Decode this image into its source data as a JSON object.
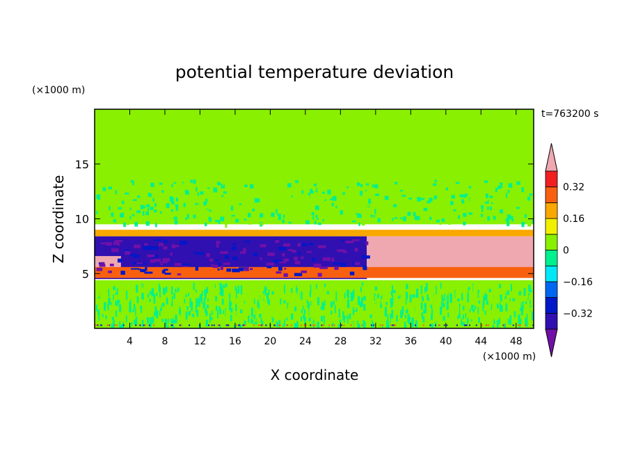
{
  "chart_data": {
    "type": "heatmap",
    "title": "potential temperature deviation",
    "xlabel": "X coordinate",
    "ylabel": "Z coordinate",
    "x_unit": "(×1000 m)",
    "y_unit": "(×1000 m)",
    "time_label": "t=763200 s",
    "xlim": [
      0,
      50
    ],
    "ylim": [
      0,
      20
    ],
    "x_ticks": [
      4,
      8,
      12,
      16,
      20,
      24,
      28,
      32,
      36,
      40,
      44,
      48
    ],
    "y_ticks": [
      5,
      10,
      15
    ],
    "x_tick_labels": [
      "4",
      "8",
      "12",
      "16",
      "20",
      "24",
      "28",
      "32",
      "36",
      "40",
      "44",
      "48"
    ],
    "y_tick_labels": [
      "5",
      "10",
      "15"
    ],
    "colorbar": {
      "levels": [
        -0.48,
        -0.4,
        -0.32,
        -0.24,
        -0.16,
        -0.08,
        0,
        0.08,
        0.16,
        0.24,
        0.32,
        0.4
      ],
      "labels": [
        "0.32",
        "0.16",
        "0",
        "−0.16",
        "−0.32"
      ],
      "label_values": [
        0.32,
        0.16,
        0,
        -0.16,
        -0.32
      ],
      "colors": [
        "#7010a8",
        "#3010b0",
        "#0018c8",
        "#0068f0",
        "#00e8f8",
        "#00f090",
        "#88f000",
        "#f0f000",
        "#f8a800",
        "#f86010",
        "#f02020",
        "#f0a8b0"
      ]
    },
    "regions": [
      {
        "name": "upper-layer",
        "x": [
          0,
          50
        ],
        "z": [
          9.5,
          20
        ],
        "value": 0.04
      },
      {
        "name": "inversion-cap",
        "x": [
          0,
          50
        ],
        "z": [
          8.4,
          9.0
        ],
        "value": 0.2
      },
      {
        "name": "cold-anomaly",
        "x": [
          0,
          31
        ],
        "z": [
          4.5,
          8.4
        ],
        "value": -0.36
      },
      {
        "name": "warm-anomaly",
        "x": [
          31,
          50
        ],
        "z": [
          5.5,
          8.4
        ],
        "value": 0.42
      },
      {
        "name": "warm-pocket-left",
        "x": [
          0,
          3
        ],
        "z": [
          5.5,
          6.6
        ],
        "value": 0.42
      },
      {
        "name": "warm-band",
        "x": [
          0,
          50
        ],
        "z": [
          4.6,
          5.6
        ],
        "value": 0.3
      },
      {
        "name": "boundary-layer",
        "x": [
          0,
          50
        ],
        "z": [
          0,
          4.4
        ],
        "value": 0.02
      }
    ]
  }
}
